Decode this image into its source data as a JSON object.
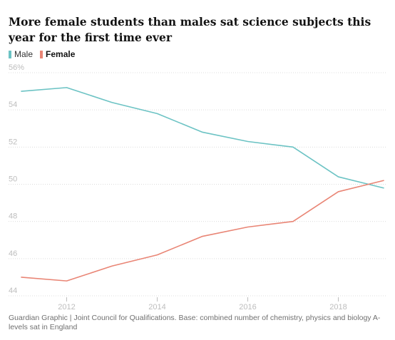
{
  "title": "More female students than males sat science subjects this year for the first time ever",
  "legend": [
    {
      "label": "Male",
      "color": "#6cc3c4"
    },
    {
      "label": "Female",
      "color": "#e98575"
    }
  ],
  "source": "Guardian Graphic | Joint Council for Qualifications. Base: combined number of chemistry, physics and biology A-levels sat in England",
  "chart_data": {
    "type": "line",
    "x": [
      2011,
      2012,
      2013,
      2014,
      2015,
      2016,
      2017,
      2018,
      2019
    ],
    "xlim": [
      2011,
      2019
    ],
    "xticks": [
      2012,
      2014,
      2016,
      2018
    ],
    "xtick_labels": [
      "2012",
      "2014",
      "2016",
      "2018"
    ],
    "ylim": [
      44,
      56
    ],
    "yticks": [
      44,
      46,
      48,
      50,
      52,
      54,
      56
    ],
    "ytick_labels": [
      "44",
      "46",
      "48",
      "50",
      "52",
      "54",
      "56%"
    ],
    "grid": "horizontal dotted",
    "legend_position": "top-left",
    "series": [
      {
        "name": "Male",
        "color": "#6cc3c4",
        "values": [
          55.0,
          55.2,
          54.4,
          53.8,
          52.8,
          52.3,
          52.0,
          50.4,
          49.8
        ]
      },
      {
        "name": "Female",
        "color": "#e98575",
        "values": [
          45.0,
          44.8,
          45.6,
          46.2,
          47.2,
          47.7,
          48.0,
          49.6,
          50.2
        ]
      }
    ]
  }
}
